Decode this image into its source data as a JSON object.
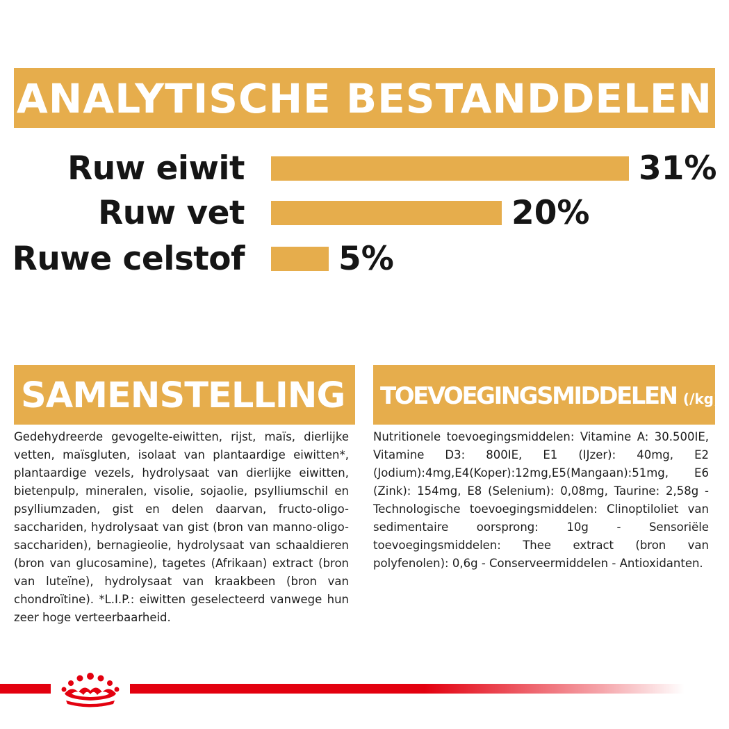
{
  "banner": {
    "title": "ANALYTISCHE BESTANDDELEN"
  },
  "analysis": {
    "items": [
      {
        "label": "Ruw eiwit",
        "value": "31%",
        "percent": 31
      },
      {
        "label": "Ruw vet",
        "value": "20%",
        "percent": 20
      },
      {
        "label": "Ruwe celstof",
        "value": "5%",
        "percent": 5
      }
    ]
  },
  "composition": {
    "title": "SAMENSTELLING",
    "text": "Gedehydreerde gevogelte-eiwitten, rijst, maïs, dierlijke vetten, maïsgluten, isolaat van plantaardige eiwitten*, plantaardige vezels, hydrolysaat van dierlijke eiwitten, bietenpulp, mineralen, visolie, sojaolie, psylliumschil en psylliumzaden, gist en delen daarvan, fructo-oligo-sacchariden, hydrolysaat van gist (bron van manno-oligo-sacchariden), bernagieolie, hydrolysaat van schaaldieren (bron van glucosamine), tagetes (Afrikaan) extract (bron van luteïne), hydrolysaat van kraakbeen (bron van chondroïtine). *L.I.P.: eiwitten geselecteerd vanwege hun zeer hoge verteerbaarheid."
  },
  "additives": {
    "title": "TOEVOEGINGSMIDDELEN",
    "title_suffix": "(/kg)",
    "text": "Nutritionele toevoegingsmiddelen: Vitamine A: 30.500IE, Vitamine D3: 800IE, E1 (IJzer): 40mg, E2 (Jodium):4mg,E4(Koper):12mg,E5(Mangaan):51mg, E6 (Zink): 154mg, E8 (Selenium): 0,08mg, Taurine: 2,58g - Technologische toevoegingsmiddelen: Clinoptiloliet van sedimentaire oorsprong: 10g - Sensoriële toevoegingsmiddelen: Thee extract (bron van polyfenolen): 0,6g - Conserveermiddelen - Antioxidanten."
  },
  "colors": {
    "accent": "#e6ad4c",
    "brand_red": "#e3000f",
    "text": "#151515"
  },
  "footer": {
    "logo_icon": "royal-canin-crown-icon"
  }
}
